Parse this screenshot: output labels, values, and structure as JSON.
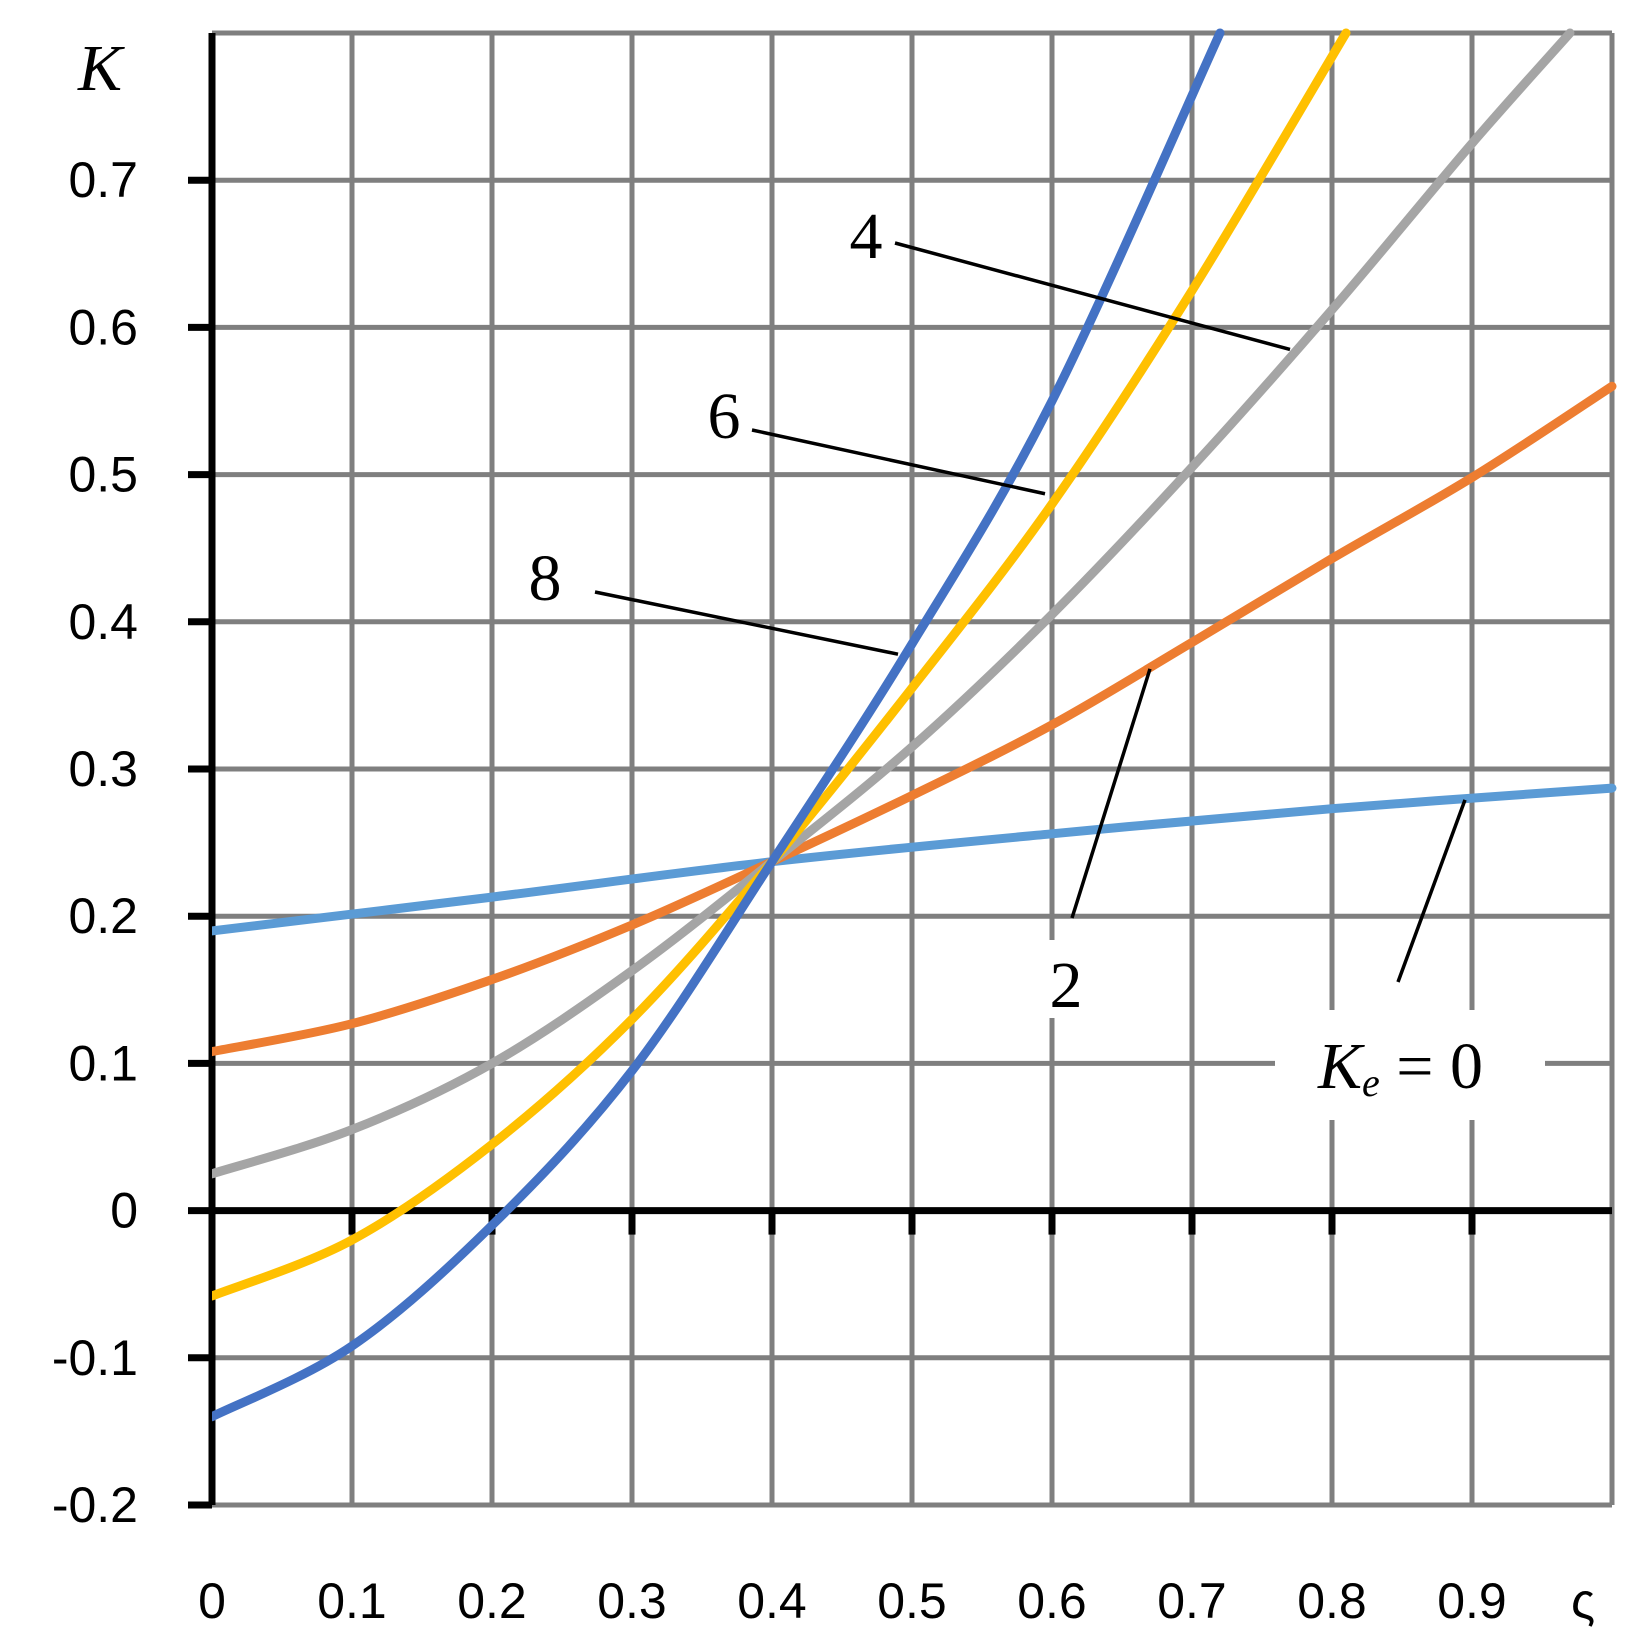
{
  "chart_data": {
    "type": "line",
    "ylabel": "K",
    "xlabel": "ς",
    "xlim": [
      0,
      1
    ],
    "ylim": [
      -0.2,
      0.8
    ],
    "x_ticks": [
      "0",
      "0.1",
      "0.2",
      "0.3",
      "0.4",
      "0.5",
      "0.6",
      "0.7",
      "0.8",
      "0.9"
    ],
    "y_ticks": [
      "-0.2",
      "-0.1",
      "0",
      "0.1",
      "0.2",
      "0.3",
      "0.4",
      "0.5",
      "0.6",
      "0.7"
    ],
    "grid": true,
    "series": [
      {
        "name": "0",
        "color": "#5b9bd5",
        "points": [
          [
            0,
            0.19
          ],
          [
            0.2,
            0.213
          ],
          [
            0.4,
            0.237
          ],
          [
            0.6,
            0.256
          ],
          [
            0.8,
            0.273
          ],
          [
            1.0,
            0.287
          ]
        ]
      },
      {
        "name": "2",
        "color": "#ed7d31",
        "points": [
          [
            0,
            0.108
          ],
          [
            0.1,
            0.127
          ],
          [
            0.2,
            0.157
          ],
          [
            0.3,
            0.194
          ],
          [
            0.4,
            0.237
          ],
          [
            0.5,
            0.282
          ],
          [
            0.6,
            0.33
          ],
          [
            0.7,
            0.386
          ],
          [
            0.8,
            0.443
          ],
          [
            0.9,
            0.498
          ],
          [
            1.0,
            0.56
          ]
        ]
      },
      {
        "name": "4",
        "color": "#a5a5a5",
        "points": [
          [
            0,
            0.025
          ],
          [
            0.1,
            0.055
          ],
          [
            0.2,
            0.1
          ],
          [
            0.3,
            0.163
          ],
          [
            0.4,
            0.237
          ],
          [
            0.5,
            0.315
          ],
          [
            0.6,
            0.405
          ],
          [
            0.7,
            0.505
          ],
          [
            0.8,
            0.612
          ],
          [
            0.9,
            0.725
          ],
          [
            0.97,
            0.8
          ]
        ]
      },
      {
        "name": "6",
        "color": "#ffc000",
        "points": [
          [
            0,
            -0.058
          ],
          [
            0.1,
            -0.02
          ],
          [
            0.2,
            0.045
          ],
          [
            0.3,
            0.13
          ],
          [
            0.4,
            0.237
          ],
          [
            0.5,
            0.355
          ],
          [
            0.6,
            0.48
          ],
          [
            0.7,
            0.625
          ],
          [
            0.81,
            0.8
          ]
        ]
      },
      {
        "name": "8",
        "color": "#4472c4",
        "points": [
          [
            0,
            -0.14
          ],
          [
            0.1,
            -0.092
          ],
          [
            0.2,
            -0.01
          ],
          [
            0.3,
            0.095
          ],
          [
            0.4,
            0.237
          ],
          [
            0.5,
            0.385
          ],
          [
            0.6,
            0.55
          ],
          [
            0.72,
            0.8
          ]
        ]
      }
    ],
    "annotations": [
      {
        "label_prefix": "K",
        "label_sub": "e",
        "label_suffix": " = 0",
        "series": "0"
      },
      {
        "label": "2",
        "series": "2"
      },
      {
        "label": "4",
        "series": "4"
      },
      {
        "label": "6",
        "series": "6"
      },
      {
        "label": "8",
        "series": "8"
      }
    ]
  }
}
